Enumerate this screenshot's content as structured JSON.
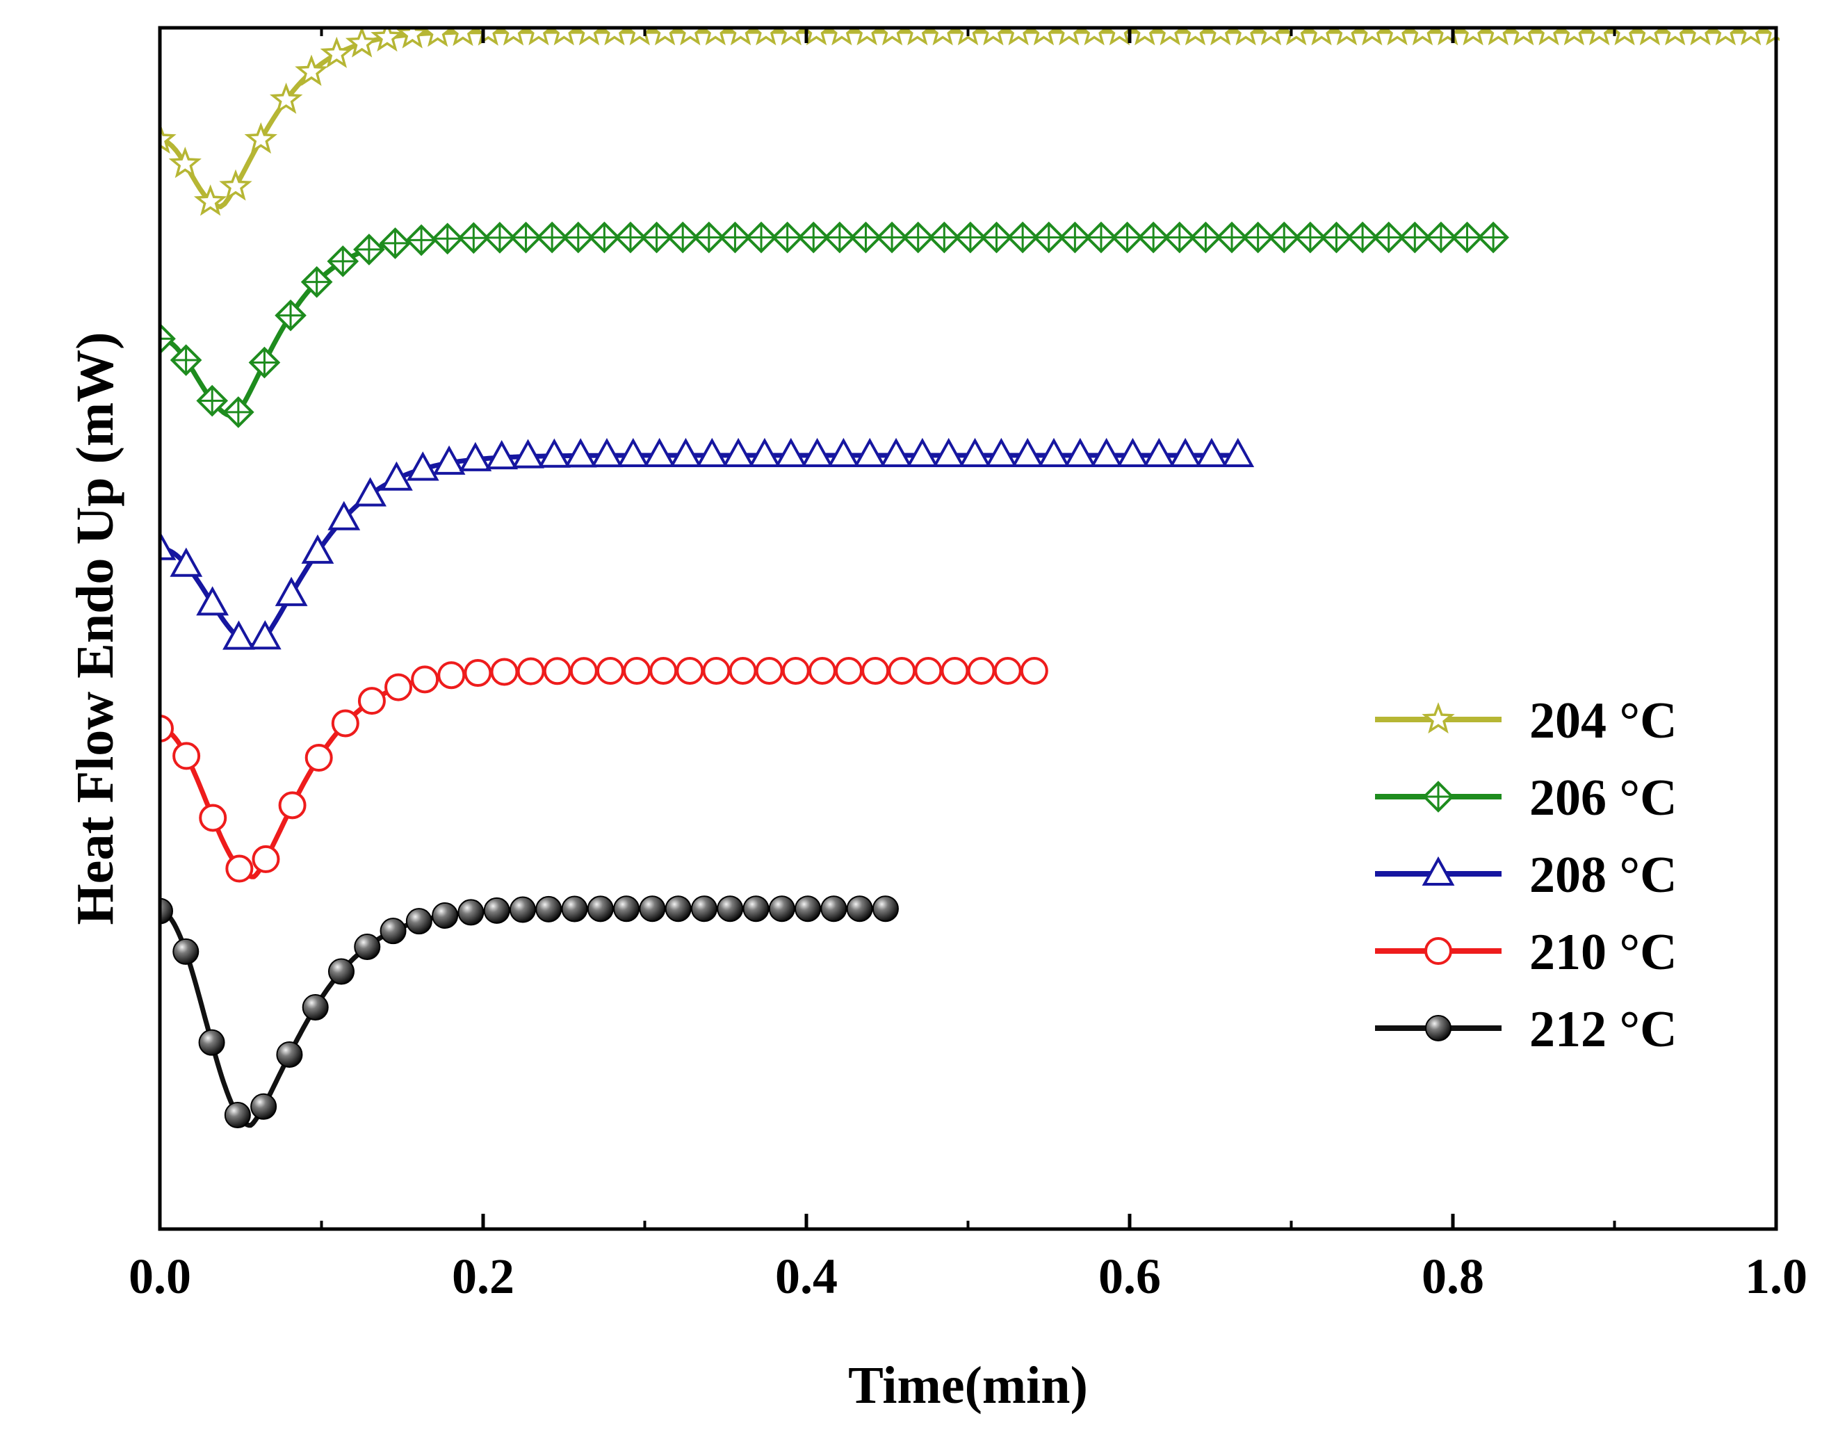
{
  "chart_data": {
    "type": "line",
    "title": "",
    "xlabel": "Time(min)",
    "ylabel": "Heat Flow Endo Up (mW)",
    "xlim": [
      0.0,
      1.0
    ],
    "ylim": [
      0,
      1020
    ],
    "y_ticks_labeled": false,
    "x_ticks": [
      "0.0",
      "0.2",
      "0.4",
      "0.6",
      "0.8",
      "1.0"
    ],
    "x_tick_values": [
      0.0,
      0.2,
      0.4,
      0.6,
      0.8,
      1.0
    ],
    "x_minor_tick_values": [
      0.1,
      0.3,
      0.5,
      0.7,
      0.9
    ],
    "legend_position": "right",
    "series": [
      {
        "name": "204 °C",
        "color": "#b6b634",
        "marker": "star",
        "x_end": 1.0,
        "n_markers": 65,
        "start": 925,
        "min_t": 0.038,
        "min_val": 868,
        "plateau": 1017,
        "rise_tau": 0.042
      },
      {
        "name": "206 °C",
        "color": "#1e8c1e",
        "marker": "diamond",
        "x_end": 0.825,
        "n_markers": 52,
        "start": 756,
        "min_t": 0.046,
        "min_val": 690,
        "plateau": 842,
        "rise_tau": 0.04
      },
      {
        "name": "208 °C",
        "color": "#1616a0",
        "marker": "triangle",
        "x_end": 0.667,
        "n_markers": 42,
        "start": 578,
        "min_t": 0.06,
        "min_val": 495,
        "plateau": 657,
        "rise_tau": 0.05
      },
      {
        "name": "210 °C",
        "color": "#ee1c1c",
        "marker": "circle",
        "x_end": 0.541,
        "n_markers": 34,
        "start": 425,
        "min_t": 0.058,
        "min_val": 299,
        "plateau": 474,
        "rise_tau": 0.045
      },
      {
        "name": "212 °C",
        "color": "#111111",
        "marker": "ball",
        "x_end": 0.449,
        "n_markers": 29,
        "start": 270,
        "min_t": 0.056,
        "min_val": 88,
        "plateau": 272,
        "rise_tau": 0.048
      }
    ]
  }
}
